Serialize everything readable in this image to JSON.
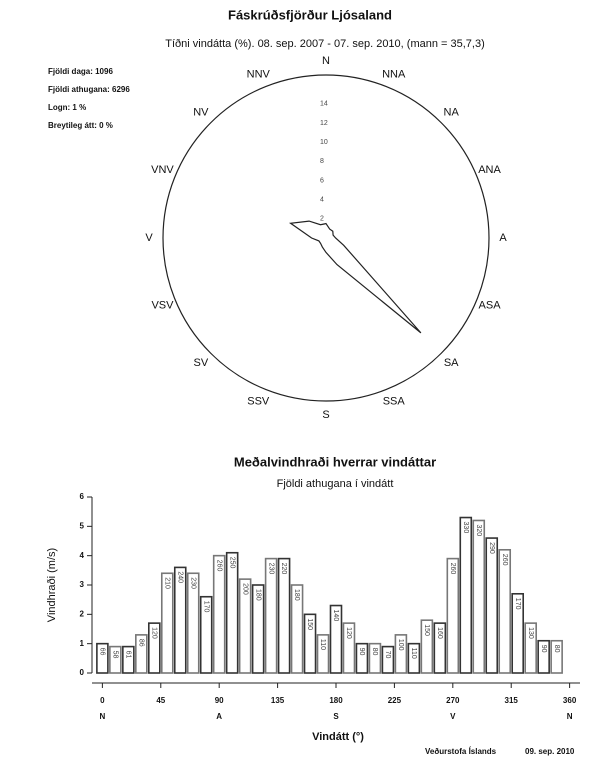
{
  "chart_data": [
    {
      "type": "windrose",
      "title": "Fáskrúðsfjörður Ljósaland",
      "subtitle": "Tíðni vindátta (%). 08. sep. 2007 - 07. sep. 2010, (mann = 35,7,3)",
      "annotations": [
        "Fjöldi daga: 1096",
        "Fjöldi athugana: 6296",
        "Logn: 1 %",
        "Breytileg átt: 0 %"
      ],
      "categories": [
        "N",
        "NNA",
        "NA",
        "ANA",
        "A",
        "ASA",
        "SA",
        "SSA",
        "S",
        "SSV",
        "SV",
        "VSV",
        "V",
        "VNV",
        "NV",
        "NNV"
      ],
      "values": [
        1.5,
        1,
        1,
        0.8,
        1,
        2,
        14,
        3,
        1.5,
        1,
        0.8,
        0.8,
        1.5,
        4,
        2.5,
        1.5
      ],
      "rlim": [
        0,
        17
      ],
      "rticks": [
        2,
        4,
        6,
        8,
        10,
        12,
        14
      ]
    },
    {
      "type": "bar",
      "title": "Meðalvindhraði hverrar vindáttar",
      "subtitle": "Fjöldi athugana í vindátt",
      "ylabel": "Vindhraði (m/s)",
      "xlabel": "Vindátt (°)",
      "source": "Veðurstofa Íslands",
      "date": "09. sep. 2010",
      "x": [
        0,
        10,
        20,
        30,
        40,
        50,
        60,
        70,
        80,
        90,
        100,
        110,
        120,
        130,
        140,
        150,
        160,
        170,
        180,
        190,
        200,
        210,
        220,
        230,
        240,
        250,
        260,
        270,
        280,
        290,
        300,
        310,
        320,
        330,
        340,
        350
      ],
      "values": [
        1.0,
        0.9,
        0.9,
        1.3,
        1.7,
        3.4,
        3.6,
        3.4,
        2.6,
        4.0,
        4.1,
        3.2,
        3.0,
        3.9,
        3.9,
        3.0,
        2.0,
        1.3,
        2.3,
        1.7,
        1.0,
        1.0,
        0.9,
        1.3,
        1.0,
        1.8,
        1.7,
        3.9,
        5.3,
        5.2,
        4.6,
        4.2,
        2.7,
        1.7,
        1.1,
        1.1
      ],
      "counts": [
        66,
        58,
        61,
        86,
        120,
        210,
        240,
        230,
        170,
        260,
        250,
        200,
        180,
        230,
        220,
        180,
        150,
        110,
        140,
        120,
        90,
        80,
        70,
        100,
        110,
        150,
        160,
        260,
        330,
        320,
        290,
        260,
        170,
        130,
        90,
        80
      ],
      "xlim": [
        -8,
        368
      ],
      "xticks": [
        0,
        45,
        90,
        135,
        180,
        225,
        270,
        315,
        360
      ],
      "compass_ticks": [
        {
          "value": 0,
          "label": "N"
        },
        {
          "value": 90,
          "label": "A"
        },
        {
          "value": 180,
          "label": "S"
        },
        {
          "value": 270,
          "label": "V"
        },
        {
          "value": 360,
          "label": "N"
        }
      ],
      "ylim": [
        0,
        6
      ],
      "yticks": [
        0,
        1,
        2,
        3,
        4,
        5,
        6
      ],
      "color": "#333333"
    }
  ]
}
